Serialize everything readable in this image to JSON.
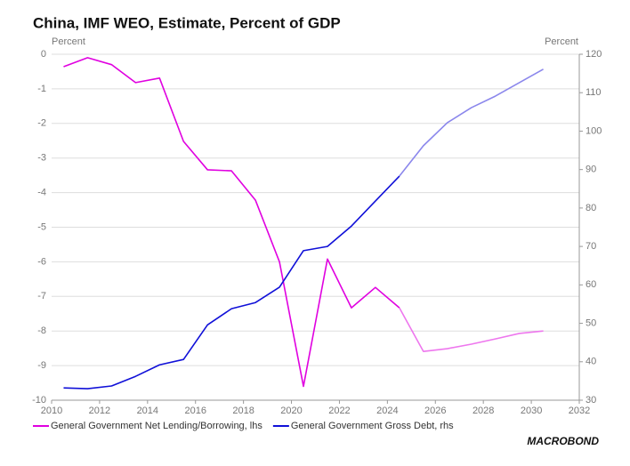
{
  "chart_data": {
    "type": "line",
    "title": "China, IMF WEO, Estimate, Percent of GDP",
    "y_label": "Percent",
    "y2_label": "Percent",
    "x": [
      2010.5,
      2011.5,
      2012.5,
      2013.5,
      2014.5,
      2015.5,
      2016.5,
      2017.5,
      2018.5,
      2019.5,
      2020.5,
      2021.5,
      2022.5,
      2023.5,
      2024.5,
      2025.5,
      2026.5,
      2027.5,
      2028.5,
      2029.5,
      2030.5
    ],
    "estimate_from_x": 2024.5,
    "series": [
      {
        "name": "General Government Net Lending/Borrowing, lhs",
        "color": "#e000e0",
        "estimate_color": "#ee77ee",
        "values": [
          -0.36,
          -0.1,
          -0.3,
          -0.82,
          -0.69,
          -2.52,
          -3.34,
          -3.37,
          -4.22,
          -6.0,
          -9.6,
          -5.92,
          -7.33,
          -6.74,
          -7.33,
          -8.59,
          -8.51,
          -8.38,
          -8.23,
          -8.07,
          -8.0
        ]
      },
      {
        "name": "General Government Gross Debt, rhs",
        "color": "#1010d8",
        "estimate_color": "#8b87ec",
        "axis": "y2",
        "values": [
          33.2,
          33.0,
          33.7,
          36.2,
          39.2,
          40.6,
          49.6,
          53.8,
          55.4,
          59.4,
          68.9,
          70.0,
          75.3,
          81.8,
          88.3,
          96.2,
          102.2,
          106.1,
          109.1,
          112.6,
          116.1
        ]
      }
    ],
    "xlim": [
      2010,
      2032
    ],
    "xticks": [
      2010,
      2012,
      2014,
      2016,
      2018,
      2020,
      2022,
      2024,
      2026,
      2028,
      2030,
      2032
    ],
    "ylim": [
      -10,
      0
    ],
    "yticks": [
      -10,
      -9,
      -8,
      -7,
      -6,
      -5,
      -4,
      -3,
      -2,
      -1,
      0
    ],
    "y2lim": [
      30,
      120
    ],
    "y2ticks": [
      30,
      40,
      50,
      60,
      70,
      80,
      90,
      100,
      110,
      120
    ],
    "grid": true,
    "legend": "bottom",
    "source_logo": "MACROBOND"
  }
}
